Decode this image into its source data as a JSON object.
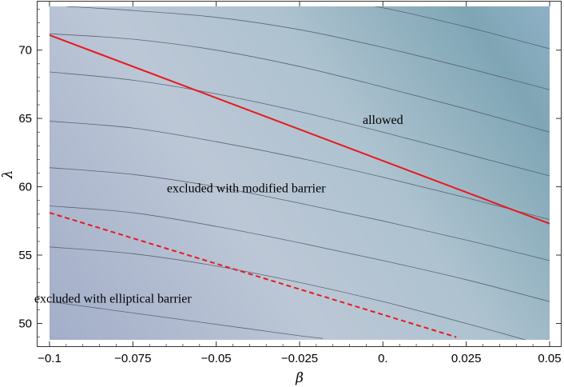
{
  "chart_data": {
    "type": "contour",
    "title": "",
    "xlabel": "β",
    "ylabel": "λ",
    "xlim": [
      -0.1,
      0.05
    ],
    "ylim": [
      48.8,
      73.2
    ],
    "x_ticks": [
      -0.1,
      -0.075,
      -0.05,
      -0.025,
      0.0,
      0.025,
      0.05
    ],
    "x_tick_labels": [
      "−0.1",
      "−0.075",
      "−0.05",
      "−0.025",
      "0.",
      "0.025",
      "0.05"
    ],
    "y_ticks": [
      50,
      55,
      60,
      65,
      70
    ],
    "y_tick_labels": [
      "50",
      "55",
      "60",
      "65",
      "70"
    ],
    "grid": false,
    "contour_levels": [
      {
        "x": [
          -0.1,
          -0.085,
          -0.07,
          -0.055,
          -0.04,
          -0.025,
          -0.018
        ],
        "y": [
          51.6,
          51.1,
          50.6,
          50.1,
          49.6,
          49.1,
          48.9
        ]
      },
      {
        "x": [
          -0.1,
          -0.075,
          -0.05,
          -0.025,
          0.0,
          0.025,
          0.05
        ],
        "y": [
          55.6,
          55.1,
          54.2,
          53.0,
          51.6,
          50.0,
          48.3
        ]
      },
      {
        "x": [
          -0.1,
          -0.075,
          -0.05,
          -0.025,
          0.0,
          0.025,
          0.05
        ],
        "y": [
          58.6,
          58.1,
          57.1,
          55.9,
          54.6,
          53.2,
          51.6
        ]
      },
      {
        "x": [
          -0.1,
          -0.075,
          -0.05,
          -0.025,
          0.0,
          0.025,
          0.05
        ],
        "y": [
          61.4,
          60.9,
          60.0,
          58.8,
          57.5,
          56.1,
          54.6
        ]
      },
      {
        "x": [
          -0.1,
          -0.075,
          -0.05,
          -0.025,
          0.0,
          0.025,
          0.05
        ],
        "y": [
          64.8,
          64.3,
          63.3,
          62.1,
          60.7,
          59.2,
          57.6
        ]
      },
      {
        "x": [
          -0.1,
          -0.075,
          -0.05,
          -0.025,
          0.0,
          0.025,
          0.05
        ],
        "y": [
          68.4,
          67.8,
          66.8,
          65.5,
          64.0,
          62.4,
          60.8
        ]
      },
      {
        "x": [
          -0.1,
          -0.075,
          -0.05,
          -0.025,
          0.0,
          0.025,
          0.05
        ],
        "y": [
          71.2,
          70.8,
          70.0,
          68.8,
          67.3,
          65.7,
          64.0
        ]
      },
      {
        "x": [
          -0.095,
          -0.075,
          -0.05,
          -0.025,
          0.0,
          0.025,
          0.05
        ],
        "y": [
          73.2,
          72.9,
          72.4,
          71.5,
          70.2,
          68.7,
          67.1
        ]
      },
      {
        "x": [
          -0.075,
          -0.05,
          -0.025,
          0.0,
          0.025,
          0.05
        ],
        "y": [
          75.0,
          74.7,
          74.1,
          73.1,
          71.7,
          70.1
        ]
      }
    ],
    "boundaries": [
      {
        "label": "modified barrier",
        "style": "solid",
        "color": "#e8191e",
        "x": [
          -0.1,
          0.05
        ],
        "y": [
          71.1,
          57.3
        ]
      },
      {
        "label": "elliptical barrier",
        "style": "dashed",
        "color": "#e8191e",
        "x": [
          -0.1,
          0.022
        ],
        "y": [
          58.1,
          49.0
        ]
      }
    ],
    "annotations": [
      {
        "text": "allowed",
        "x": 0.0,
        "y": 64.9
      },
      {
        "text": "excluded with modified barrier",
        "x": -0.041,
        "y": 59.9
      },
      {
        "text": "excluded with elliptical barrier",
        "x": -0.081,
        "y": 51.8
      }
    ],
    "colors": {
      "fill_top_right": "#7ea6b6",
      "fill_middle": "#bccad6",
      "fill_bottom_left": "#a8b2cc",
      "contour_line": "#4a5560",
      "frame": "#333333"
    }
  }
}
